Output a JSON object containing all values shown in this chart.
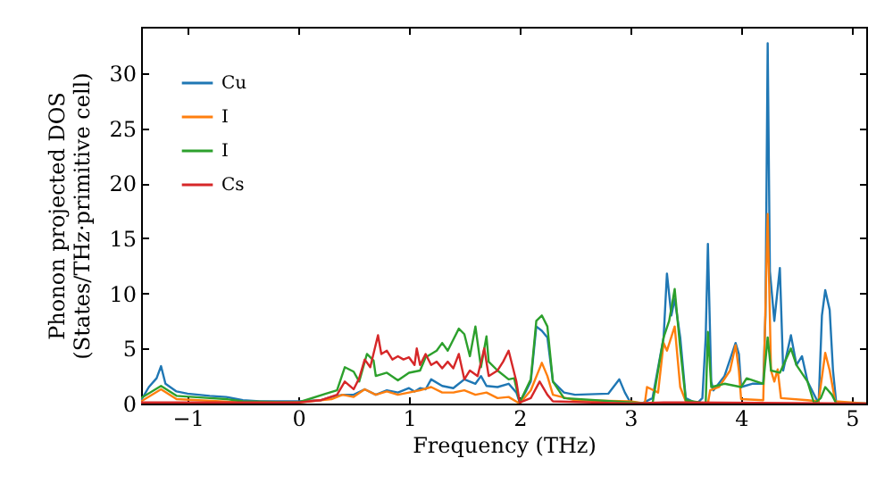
{
  "chart_data": {
    "type": "line",
    "xlabel": "Frequency (THz)",
    "ylabel": "Phonon projected DOS\n(States/THz·primitive cell)",
    "xlim": [
      -1.42,
      5.13
    ],
    "ylim": [
      0,
      34.2
    ],
    "xticks": [
      -1,
      0,
      1,
      2,
      3,
      4,
      5
    ],
    "yticks": [
      0,
      5,
      10,
      15,
      20,
      25,
      30
    ],
    "grid": false,
    "legend": "top left",
    "series": [
      {
        "name": "Cu",
        "color": "#1f77b4",
        "x": [
          -1.42,
          -1.35,
          -1.28,
          -1.24,
          -1.2,
          -1.1,
          -1.0,
          -0.8,
          -0.65,
          -0.5,
          -0.35,
          0,
          0.2,
          0.3,
          0.4,
          0.5,
          0.6,
          0.7,
          0.8,
          0.9,
          1.0,
          1.05,
          1.1,
          1.15,
          1.2,
          1.3,
          1.4,
          1.5,
          1.6,
          1.65,
          1.7,
          1.8,
          1.9,
          1.97,
          2.0,
          2.05,
          2.1,
          2.15,
          2.2,
          2.25,
          2.3,
          2.4,
          2.5,
          2.8,
          2.9,
          2.95,
          3.0,
          3.1,
          3.2,
          3.3,
          3.33,
          3.37,
          3.4,
          3.45,
          3.5,
          3.6,
          3.65,
          3.68,
          3.7,
          3.73,
          3.75,
          3.85,
          3.95,
          3.98,
          4.0,
          4.1,
          4.2,
          4.22,
          4.24,
          4.26,
          4.3,
          4.35,
          4.38,
          4.45,
          4.5,
          4.55,
          4.6,
          4.7,
          4.73,
          4.76,
          4.8,
          4.83,
          4.86,
          5.13
        ],
        "values": [
          0.3,
          1.5,
          2.3,
          3.4,
          1.8,
          1.1,
          0.9,
          0.7,
          0.6,
          0.3,
          0.2,
          0.2,
          0.3,
          0.6,
          0.8,
          0.8,
          1.3,
          0.8,
          1.2,
          1.0,
          1.4,
          1.1,
          1.4,
          1.3,
          2.2,
          1.6,
          1.4,
          2.2,
          1.8,
          2.5,
          1.6,
          1.5,
          1.8,
          1.0,
          0.1,
          1.0,
          2.0,
          7.0,
          6.6,
          6.0,
          2.0,
          1.0,
          0.8,
          0.9,
          2.2,
          1.0,
          0.1,
          0,
          0.5,
          6,
          11.8,
          8,
          9.5,
          6,
          0.5,
          0,
          0.5,
          6,
          14.5,
          2,
          1.2,
          2.5,
          5.5,
          4.5,
          1.5,
          1.8,
          1.8,
          8,
          32.7,
          12,
          7.5,
          12.3,
          3,
          6.2,
          3.5,
          4.3,
          2,
          0,
          8,
          10.3,
          8.5,
          3,
          0,
          0
        ]
      },
      {
        "name": "I",
        "color": "#ff7f0e",
        "x": [
          -1.42,
          -1.24,
          -1.1,
          -0.5,
          0,
          0.3,
          0.4,
          0.5,
          0.6,
          0.7,
          0.8,
          0.9,
          1.0,
          1.1,
          1.2,
          1.3,
          1.4,
          1.5,
          1.6,
          1.7,
          1.8,
          1.9,
          2.0,
          2.1,
          2.2,
          2.25,
          2.3,
          2.5,
          3.0,
          3.13,
          3.15,
          3.25,
          3.3,
          3.33,
          3.4,
          3.45,
          3.5,
          3.7,
          3.72,
          3.8,
          3.9,
          3.95,
          3.98,
          4.0,
          4.2,
          4.24,
          4.27,
          4.3,
          4.33,
          4.36,
          4.6,
          4.7,
          4.76,
          4.8,
          4.85,
          5.13
        ],
        "values": [
          0.2,
          1.3,
          0.4,
          0.1,
          0.1,
          0.4,
          0.8,
          0.6,
          1.3,
          0.8,
          1.1,
          0.8,
          1.0,
          1.2,
          1.5,
          1.0,
          1.0,
          1.2,
          0.8,
          1.0,
          0.5,
          0.6,
          0,
          1.2,
          3.7,
          2.5,
          0.8,
          0.3,
          0.2,
          0,
          1.5,
          1.0,
          5.5,
          4.8,
          7.0,
          1.5,
          0.2,
          0,
          1.2,
          1.5,
          3.0,
          5.3,
          3,
          0.4,
          0.3,
          17.2,
          3,
          2,
          3.1,
          0.5,
          0.3,
          0.2,
          4.6,
          3,
          0.2,
          0
        ]
      },
      {
        "name": "I",
        "color": "#2ca02c",
        "x": [
          -1.42,
          -1.24,
          -1.1,
          -0.8,
          -0.65,
          -0.5,
          0,
          0.25,
          0.35,
          0.42,
          0.5,
          0.55,
          0.62,
          0.68,
          0.7,
          0.8,
          0.9,
          1.0,
          1.1,
          1.15,
          1.25,
          1.3,
          1.35,
          1.45,
          1.5,
          1.55,
          1.6,
          1.65,
          1.7,
          1.72,
          1.8,
          1.9,
          1.95,
          2.0,
          2.1,
          2.15,
          2.2,
          2.25,
          2.3,
          2.4,
          3.0,
          3.2,
          3.3,
          3.35,
          3.4,
          3.45,
          3.5,
          3.68,
          3.7,
          3.73,
          3.85,
          4.0,
          4.05,
          4.2,
          4.24,
          4.27,
          4.35,
          4.45,
          4.5,
          4.6,
          4.66,
          4.72,
          4.76,
          4.82,
          4.86,
          5.13
        ],
        "values": [
          0.5,
          1.6,
          0.7,
          0.5,
          0.4,
          0.2,
          0.1,
          0.9,
          1.2,
          3.3,
          2.9,
          2.0,
          4.5,
          3.9,
          2.5,
          2.8,
          2.1,
          2.8,
          3.0,
          4.2,
          4.8,
          5.5,
          4.8,
          6.8,
          6.3,
          4.3,
          7.0,
          3.3,
          6.1,
          3.8,
          3.0,
          2.2,
          2.3,
          0.1,
          2.2,
          7.5,
          8.0,
          7.0,
          2.0,
          0.5,
          0.1,
          0,
          6,
          7.5,
          10.4,
          5,
          0.3,
          0,
          6.5,
          1.5,
          1.8,
          1.5,
          2.3,
          1.8,
          6.0,
          3,
          2.8,
          5,
          3.5,
          2,
          0,
          0.5,
          1.5,
          0.8,
          0,
          0
        ]
      },
      {
        "name": "Cs",
        "color": "#d62728",
        "x": [
          -1.42,
          -1,
          0,
          0.2,
          0.35,
          0.42,
          0.5,
          0.55,
          0.6,
          0.65,
          0.72,
          0.75,
          0.8,
          0.85,
          0.9,
          0.95,
          1.0,
          1.05,
          1.07,
          1.1,
          1.15,
          1.2,
          1.25,
          1.3,
          1.35,
          1.4,
          1.45,
          1.5,
          1.55,
          1.62,
          1.68,
          1.72,
          1.8,
          1.85,
          1.9,
          1.97,
          2.0,
          2.1,
          2.18,
          2.25,
          2.3,
          3.0,
          3.3,
          3.5,
          5.13
        ],
        "values": [
          0.1,
          0.1,
          0.1,
          0.3,
          0.8,
          2.0,
          1.3,
          2.3,
          4.0,
          3.3,
          6.2,
          4.5,
          4.8,
          4.0,
          4.3,
          4.0,
          4.2,
          3.5,
          5.0,
          3.5,
          4.5,
          3.5,
          3.8,
          3.2,
          3.8,
          3.2,
          4.5,
          2.2,
          3.0,
          2.5,
          5.0,
          2.5,
          3.0,
          3.8,
          4.8,
          2.0,
          0.1,
          0.5,
          2.0,
          0.8,
          0.2,
          0,
          0.1,
          0.1,
          0
        ]
      }
    ]
  }
}
